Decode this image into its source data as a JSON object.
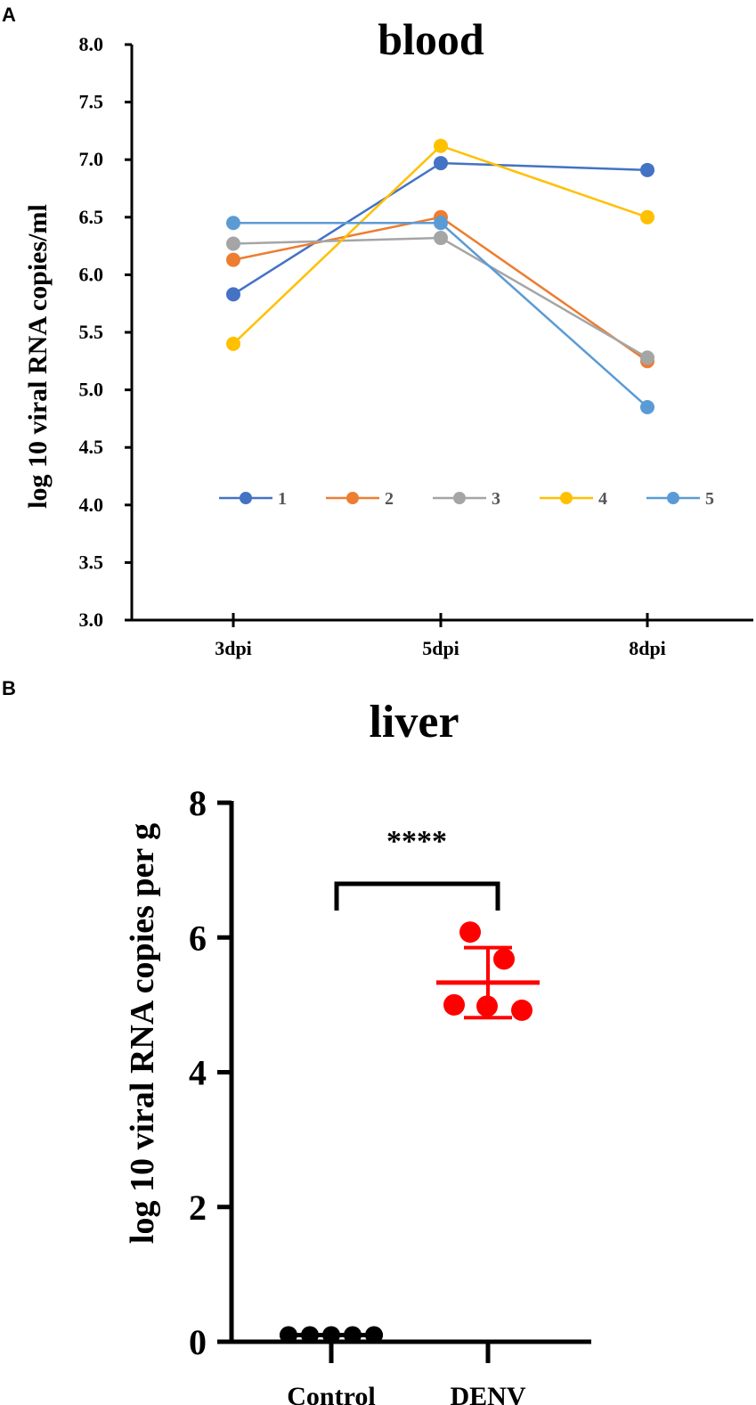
{
  "panels": {
    "a_letter": "A",
    "b_letter": "B"
  },
  "chart_data": [
    {
      "type": "line",
      "title": "blood",
      "xlabel": "",
      "ylabel": "log 10 viral RNA copies/ml",
      "categories": [
        "3dpi",
        "5dpi",
        "8dpi"
      ],
      "ylim": [
        3.0,
        8.0
      ],
      "yticks": [
        "3.0",
        "3.5",
        "4.0",
        "4.5",
        "5.0",
        "5.5",
        "6.0",
        "6.5",
        "7.0",
        "7.5",
        "8.0"
      ],
      "grid": false,
      "legend": "bottom-center",
      "series": [
        {
          "name": "1",
          "color": "#4472C4",
          "values": [
            5.83,
            6.97,
            6.91
          ]
        },
        {
          "name": "2",
          "color": "#ED7D31",
          "values": [
            6.13,
            6.5,
            5.25
          ]
        },
        {
          "name": "3",
          "color": "#A5A5A5",
          "values": [
            6.27,
            6.32,
            5.28
          ]
        },
        {
          "name": "4",
          "color": "#FFC000",
          "values": [
            5.4,
            7.12,
            6.5
          ]
        },
        {
          "name": "5",
          "color": "#5B9BD5",
          "values": [
            6.45,
            6.45,
            4.85
          ]
        }
      ]
    },
    {
      "type": "scatter",
      "title": "liver",
      "xlabel": "",
      "ylabel": "log 10 viral RNA copies per g",
      "categories": [
        "Control",
        "DENV"
      ],
      "ylim": [
        0,
        8
      ],
      "yticks": [
        "0",
        "2",
        "4",
        "6",
        "8"
      ],
      "significance": "****",
      "groups": [
        {
          "name": "Control",
          "color": "#000000",
          "points": [
            0.1,
            0.1,
            0.1,
            0.1,
            0.1
          ],
          "mean": 0.1,
          "sd": 0.0
        },
        {
          "name": "DENV",
          "color": "#FF0000",
          "points": [
            6.08,
            5.68,
            5.0,
            4.98,
            4.92
          ],
          "mean": 5.33,
          "sd": 0.52
        }
      ]
    }
  ]
}
